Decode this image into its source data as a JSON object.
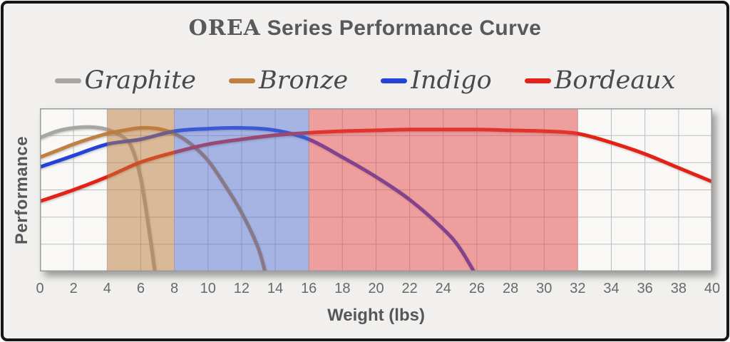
{
  "header": {
    "title_brand": "OREA",
    "title_rest": " Series Performance Curve"
  },
  "legend": {
    "items": [
      {
        "id": "graphite",
        "label": "Graphite",
        "color": "#a8a6a3"
      },
      {
        "id": "bronze",
        "label": "Bronze",
        "color": "#c0803f"
      },
      {
        "id": "indigo",
        "label": "Indigo",
        "color": "#2443d8"
      },
      {
        "id": "bordeaux",
        "label": "Bordeaux",
        "color": "#e32219"
      }
    ]
  },
  "axes": {
    "xlabel": "Weight (lbs)",
    "ylabel": "Performance"
  },
  "chart_data": {
    "type": "line",
    "title": "OREA Series Performance Curve",
    "xlabel": "Weight (lbs)",
    "ylabel": "Performance",
    "xlim": [
      0,
      40
    ],
    "ylim": [
      0,
      100
    ],
    "x_ticks": [
      0,
      2,
      4,
      6,
      8,
      10,
      12,
      14,
      16,
      18,
      20,
      22,
      24,
      26,
      28,
      30,
      32,
      34,
      36,
      38,
      40
    ],
    "y_ticks_shown": false,
    "grid": true,
    "x_grid_step": 2,
    "y_grid_divisions": 6,
    "legend_position": "top",
    "bands": [
      {
        "name": "bronze-zone",
        "from": 4,
        "to": 8,
        "color": "#bb7939",
        "opacity": 0.5
      },
      {
        "name": "indigo-zone",
        "from": 8,
        "to": 16,
        "color": "#516fcd",
        "opacity": 0.5
      },
      {
        "name": "bordeaux-zone",
        "from": 16,
        "to": 32,
        "color": "#e14343",
        "opacity": 0.5
      }
    ],
    "series": [
      {
        "name": "Graphite",
        "color": "#a8a6a3",
        "points": [
          [
            0,
            82
          ],
          [
            1,
            86
          ],
          [
            2,
            88
          ],
          [
            3,
            88.5
          ],
          [
            4,
            87
          ],
          [
            5,
            82
          ],
          [
            5.5,
            75
          ],
          [
            6,
            57
          ],
          [
            6.5,
            25
          ],
          [
            6.9,
            -5
          ]
        ]
      },
      {
        "name": "Bronze",
        "color": "#c0803f",
        "points": [
          [
            0,
            70
          ],
          [
            1,
            74
          ],
          [
            2,
            78
          ],
          [
            3,
            81.5
          ],
          [
            4,
            84.5
          ],
          [
            5,
            86.5
          ],
          [
            6,
            88
          ],
          [
            7,
            87.5
          ],
          [
            8,
            84.5
          ],
          [
            9,
            78
          ],
          [
            10,
            68
          ],
          [
            11,
            53
          ],
          [
            12,
            36
          ],
          [
            13,
            14
          ],
          [
            13.5,
            -5
          ]
        ]
      },
      {
        "name": "Indigo",
        "color": "#2443d8",
        "points": [
          [
            0,
            64
          ],
          [
            2,
            71
          ],
          [
            4,
            78
          ],
          [
            6,
            81
          ],
          [
            8,
            86
          ],
          [
            10,
            87.5
          ],
          [
            12,
            88
          ],
          [
            14,
            86.5
          ],
          [
            16,
            81
          ],
          [
            18,
            70
          ],
          [
            20,
            58
          ],
          [
            22,
            44
          ],
          [
            24,
            26
          ],
          [
            25,
            14
          ],
          [
            26.1,
            -5
          ]
        ]
      },
      {
        "name": "Bordeaux",
        "color": "#e32219",
        "points": [
          [
            0,
            43
          ],
          [
            2,
            50
          ],
          [
            4,
            58
          ],
          [
            6,
            67
          ],
          [
            8,
            73
          ],
          [
            10,
            78
          ],
          [
            12,
            81
          ],
          [
            14,
            83.5
          ],
          [
            16,
            85
          ],
          [
            18,
            86
          ],
          [
            20,
            86.5
          ],
          [
            22,
            87
          ],
          [
            24,
            87
          ],
          [
            26,
            87
          ],
          [
            28,
            86.5
          ],
          [
            30,
            86
          ],
          [
            32,
            84.5
          ],
          [
            34,
            79
          ],
          [
            36,
            72
          ],
          [
            38,
            63.5
          ],
          [
            40,
            55
          ]
        ]
      }
    ]
  },
  "colors": {
    "background": "#f1f0ee",
    "frame_border": "#161616",
    "plot_bg": "#f9f8f7",
    "gridline": "#bdbdbd",
    "axis_border": "#9a9a9a",
    "title_text": "#595959",
    "tick_text": "#686868",
    "legend_text": "#4a4a4a"
  }
}
